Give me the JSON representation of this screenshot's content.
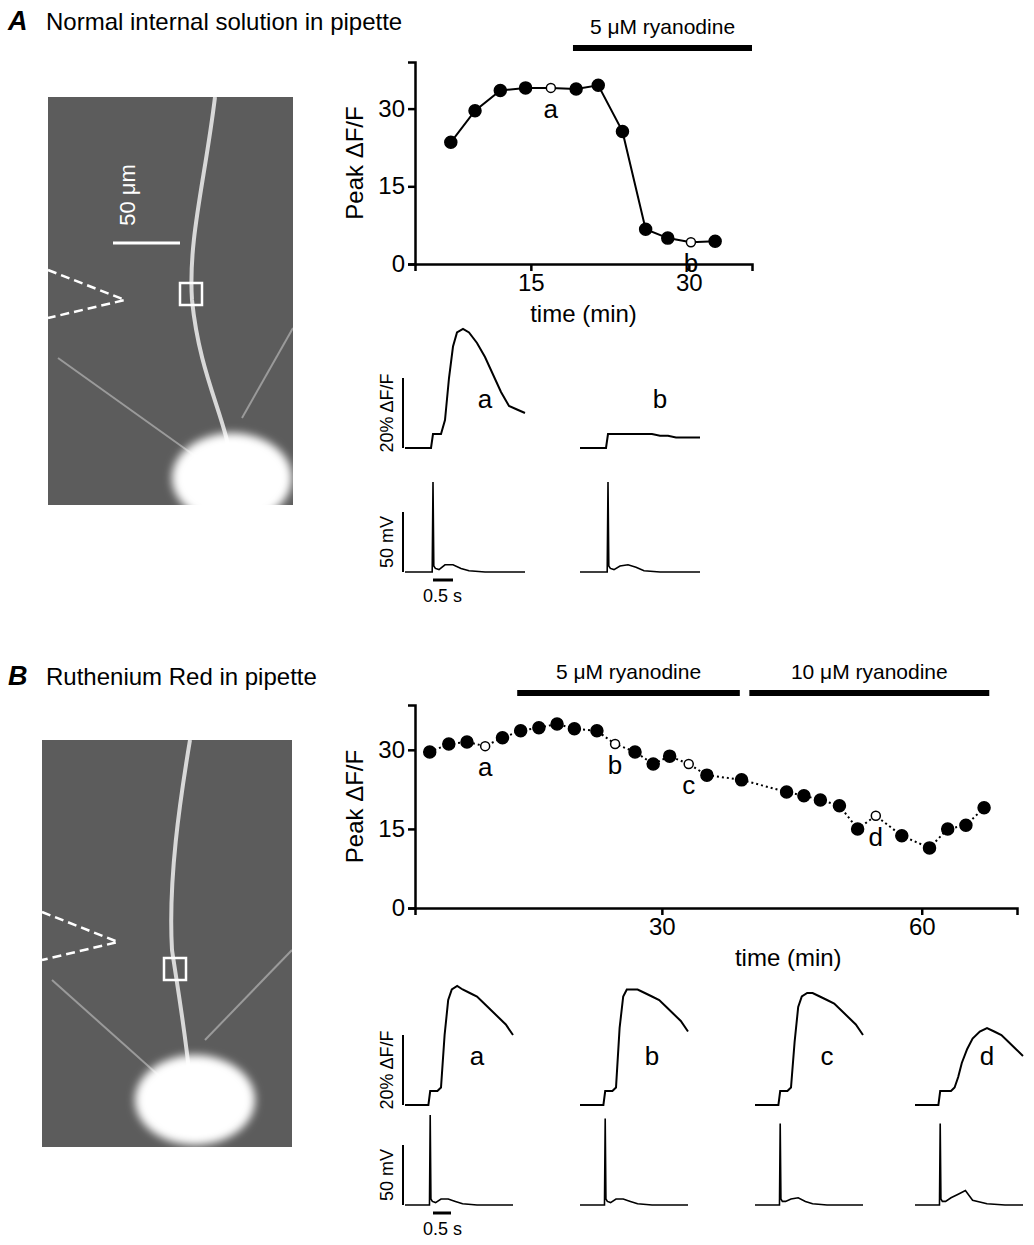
{
  "chart_data": [
    {
      "panel": "A",
      "title": "Normal internal solution in pipette",
      "type": "line",
      "image_scale_bar": "50 μm",
      "x": [
        7.4,
        9.7,
        12.1,
        14.5,
        16.9,
        19.3,
        21.4,
        23.7,
        25.9,
        28.0,
        30.2,
        32.5
      ],
      "values": [
        23.5,
        29.6,
        33.5,
        34,
        34,
        33.8,
        34.5,
        25.6,
        6.7,
        5,
        4.2,
        4.4
      ],
      "marker": "circle",
      "line_style": "solid",
      "point_labels": [
        {
          "index": 4,
          "label": "a"
        },
        {
          "index": 10,
          "label": "b"
        }
      ],
      "xlim": [
        4,
        36
      ],
      "xticks": [
        15,
        30
      ],
      "ylim": [
        0,
        39
      ],
      "yticks": [
        0,
        15,
        30
      ],
      "x_label": "time (min)",
      "y_label": "Peak ΔF/F",
      "treatments": [
        {
          "label": "5 μM ryanodine",
          "start": 19,
          "end": 36
        }
      ],
      "traces": {
        "time": [
          0,
          0.5,
          0.65,
          0.7,
          0.9,
          1.0,
          1.1,
          1.2,
          1.3,
          1.45,
          1.6,
          1.8,
          2.0,
          2.2,
          2.4,
          2.6,
          2.8,
          3.0
        ],
        "voltage_time": [
          0,
          0.68,
          0.7,
          0.72,
          0.76,
          0.85,
          1.0,
          1.2,
          1.4,
          1.6,
          2.0,
          2.5,
          3.0
        ],
        "records": [
          {
            "label": "a",
            "fluorescence": [
              0,
              0,
              0,
              4,
              4,
              8,
              20,
              29,
              33,
              34,
              33,
              30,
              26,
              21,
              16,
              12,
              11,
              10
            ],
            "voltage": [
              0,
              0,
              75,
              5,
              3,
              2,
              6,
              6,
              3,
              1,
              0,
              0,
              0
            ]
          },
          {
            "label": "b",
            "fluorescence": [
              0,
              0,
              0,
              4,
              4,
              4,
              4,
              4,
              4,
              4,
              4,
              4,
              3.5,
              3.5,
              3,
              3,
              3,
              3
            ],
            "voltage": [
              0,
              0,
              75,
              5,
              3,
              2,
              5,
              6,
              4,
              1,
              0,
              0,
              0
            ]
          }
        ]
      },
      "scale_bars": {
        "fluorescence": {
          "value": 20,
          "label": "20% ΔF/F"
        },
        "voltage": {
          "value": 50,
          "label": "50 mV"
        },
        "time": {
          "value": 0.5,
          "label": "0.5 s"
        }
      }
    },
    {
      "panel": "B",
      "title": "Ruthenium Red in pipette",
      "type": "line",
      "x": [
        3.2,
        5.4,
        7.5,
        9.6,
        11.6,
        13.7,
        15.8,
        17.9,
        19.9,
        22.5,
        24.6,
        26.9,
        29.0,
        30.9,
        33.1,
        35.2,
        39.2,
        44.4,
        46.4,
        48.3,
        50.5,
        52.6,
        54.7,
        57.7,
        60.9,
        63.0,
        65.1,
        67.2
      ],
      "values": [
        29.6,
        31.1,
        31.5,
        30.7,
        32.3,
        33.6,
        34.2,
        34.9,
        34.0,
        33.6,
        31.1,
        29.6,
        27.3,
        28.8,
        27.3,
        25.2,
        24.3,
        22.0,
        21.3,
        20.5,
        19.4,
        15.0,
        17.5,
        13.7,
        11.4,
        15.0,
        15.7,
        19.0
      ],
      "marker": "circle",
      "line_style": "dotted",
      "point_labels": [
        {
          "index": 3,
          "label": "a"
        },
        {
          "index": 10,
          "label": "b"
        },
        {
          "index": 14,
          "label": "c"
        },
        {
          "index": 22,
          "label": "d"
        }
      ],
      "xlim": [
        1.5,
        71
      ],
      "xticks": [
        30,
        60
      ],
      "ylim": [
        0,
        38.5
      ],
      "yticks": [
        0,
        15,
        30
      ],
      "x_label": "time (min)",
      "y_label": "Peak ΔF/F",
      "treatments": [
        {
          "label": "5 μM ryanodine",
          "start": 13.3,
          "end": 39.0
        },
        {
          "label": "10 μM ryanodine",
          "start": 40.1,
          "end": 67.8
        }
      ],
      "traces": {
        "time": [
          0,
          0.5,
          0.65,
          0.7,
          0.9,
          1.0,
          1.1,
          1.2,
          1.3,
          1.45,
          1.6,
          1.8,
          2.0,
          2.2,
          2.4,
          2.6,
          2.8,
          3.0
        ],
        "voltage_time": [
          0,
          0.68,
          0.7,
          0.72,
          0.76,
          0.85,
          1.0,
          1.2,
          1.4,
          1.6,
          2.0,
          2.5,
          3.0
        ],
        "records": [
          {
            "label": "a",
            "fluorescence": [
              0,
              0,
              0,
              4,
              4,
              5,
              20,
              30,
              33,
              34,
              33,
              32,
              31,
              29,
              27,
              25,
              23,
              20
            ],
            "voltage": [
              0,
              0,
              75,
              5,
              3,
              2,
              5,
              5,
              3,
              1,
              0,
              0,
              0
            ]
          },
          {
            "label": "b",
            "fluorescence": [
              0,
              0,
              0,
              4,
              4,
              5,
              22,
              31,
              33,
              33,
              33,
              32,
              31,
              30,
              28,
              26,
              24,
              21
            ],
            "voltage": [
              0,
              0,
              72,
              5,
              3,
              2,
              5,
              5,
              3,
              1,
              0,
              0,
              0
            ]
          },
          {
            "label": "c",
            "fluorescence": [
              0,
              0,
              0,
              4,
              4,
              5,
              18,
              28,
              31,
              32,
              32,
              31,
              30,
              29,
              27,
              25,
              23,
              20
            ],
            "voltage": [
              0,
              0,
              68,
              5,
              3,
              3,
              5,
              6,
              3,
              1,
              0,
              0,
              0
            ]
          },
          {
            "label": "d",
            "fluorescence": [
              0,
              0,
              0,
              4,
              4,
              4,
              5,
              8,
              12,
              16,
              19,
              21,
              22,
              21,
              20,
              18,
              16,
              14
            ],
            "voltage": [
              0,
              0,
              68,
              5,
              3,
              3,
              6,
              9,
              12,
              4,
              1,
              0,
              0
            ]
          }
        ]
      },
      "scale_bars": {
        "fluorescence": {
          "value": 20,
          "label": "20% ΔF/F"
        },
        "voltage": {
          "value": 50,
          "label": "50 mV"
        },
        "time": {
          "value": 0.5,
          "label": "0.5 s"
        }
      }
    }
  ]
}
